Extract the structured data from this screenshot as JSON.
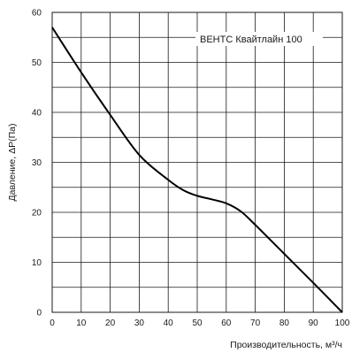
{
  "chart_data": {
    "type": "line",
    "xlabel": "Производительность, м³/ч",
    "ylabel": "Давление, ΔP(Па)",
    "xlim": [
      0,
      100
    ],
    "ylim": [
      0,
      60
    ],
    "x_ticks": [
      "0",
      "10",
      "20",
      "30",
      "40",
      "50",
      "60",
      "70",
      "80",
      "90",
      "100"
    ],
    "y_ticks": [
      "0",
      "10",
      "20",
      "30",
      "40",
      "50",
      "60"
    ],
    "grid": true,
    "legend_position": "top-right",
    "series": [
      {
        "name": "ВЕНТС Квайтлайн 100",
        "color": "#000000",
        "x": [
          0,
          10,
          20,
          30,
          40,
          45,
          50,
          55,
          60,
          65,
          70,
          80,
          90,
          100
        ],
        "y": [
          57,
          48,
          39.5,
          31.5,
          26.5,
          24.5,
          23.3,
          22.6,
          21.8,
          20.2,
          17.5,
          11.7,
          5.9,
          0
        ]
      }
    ]
  }
}
